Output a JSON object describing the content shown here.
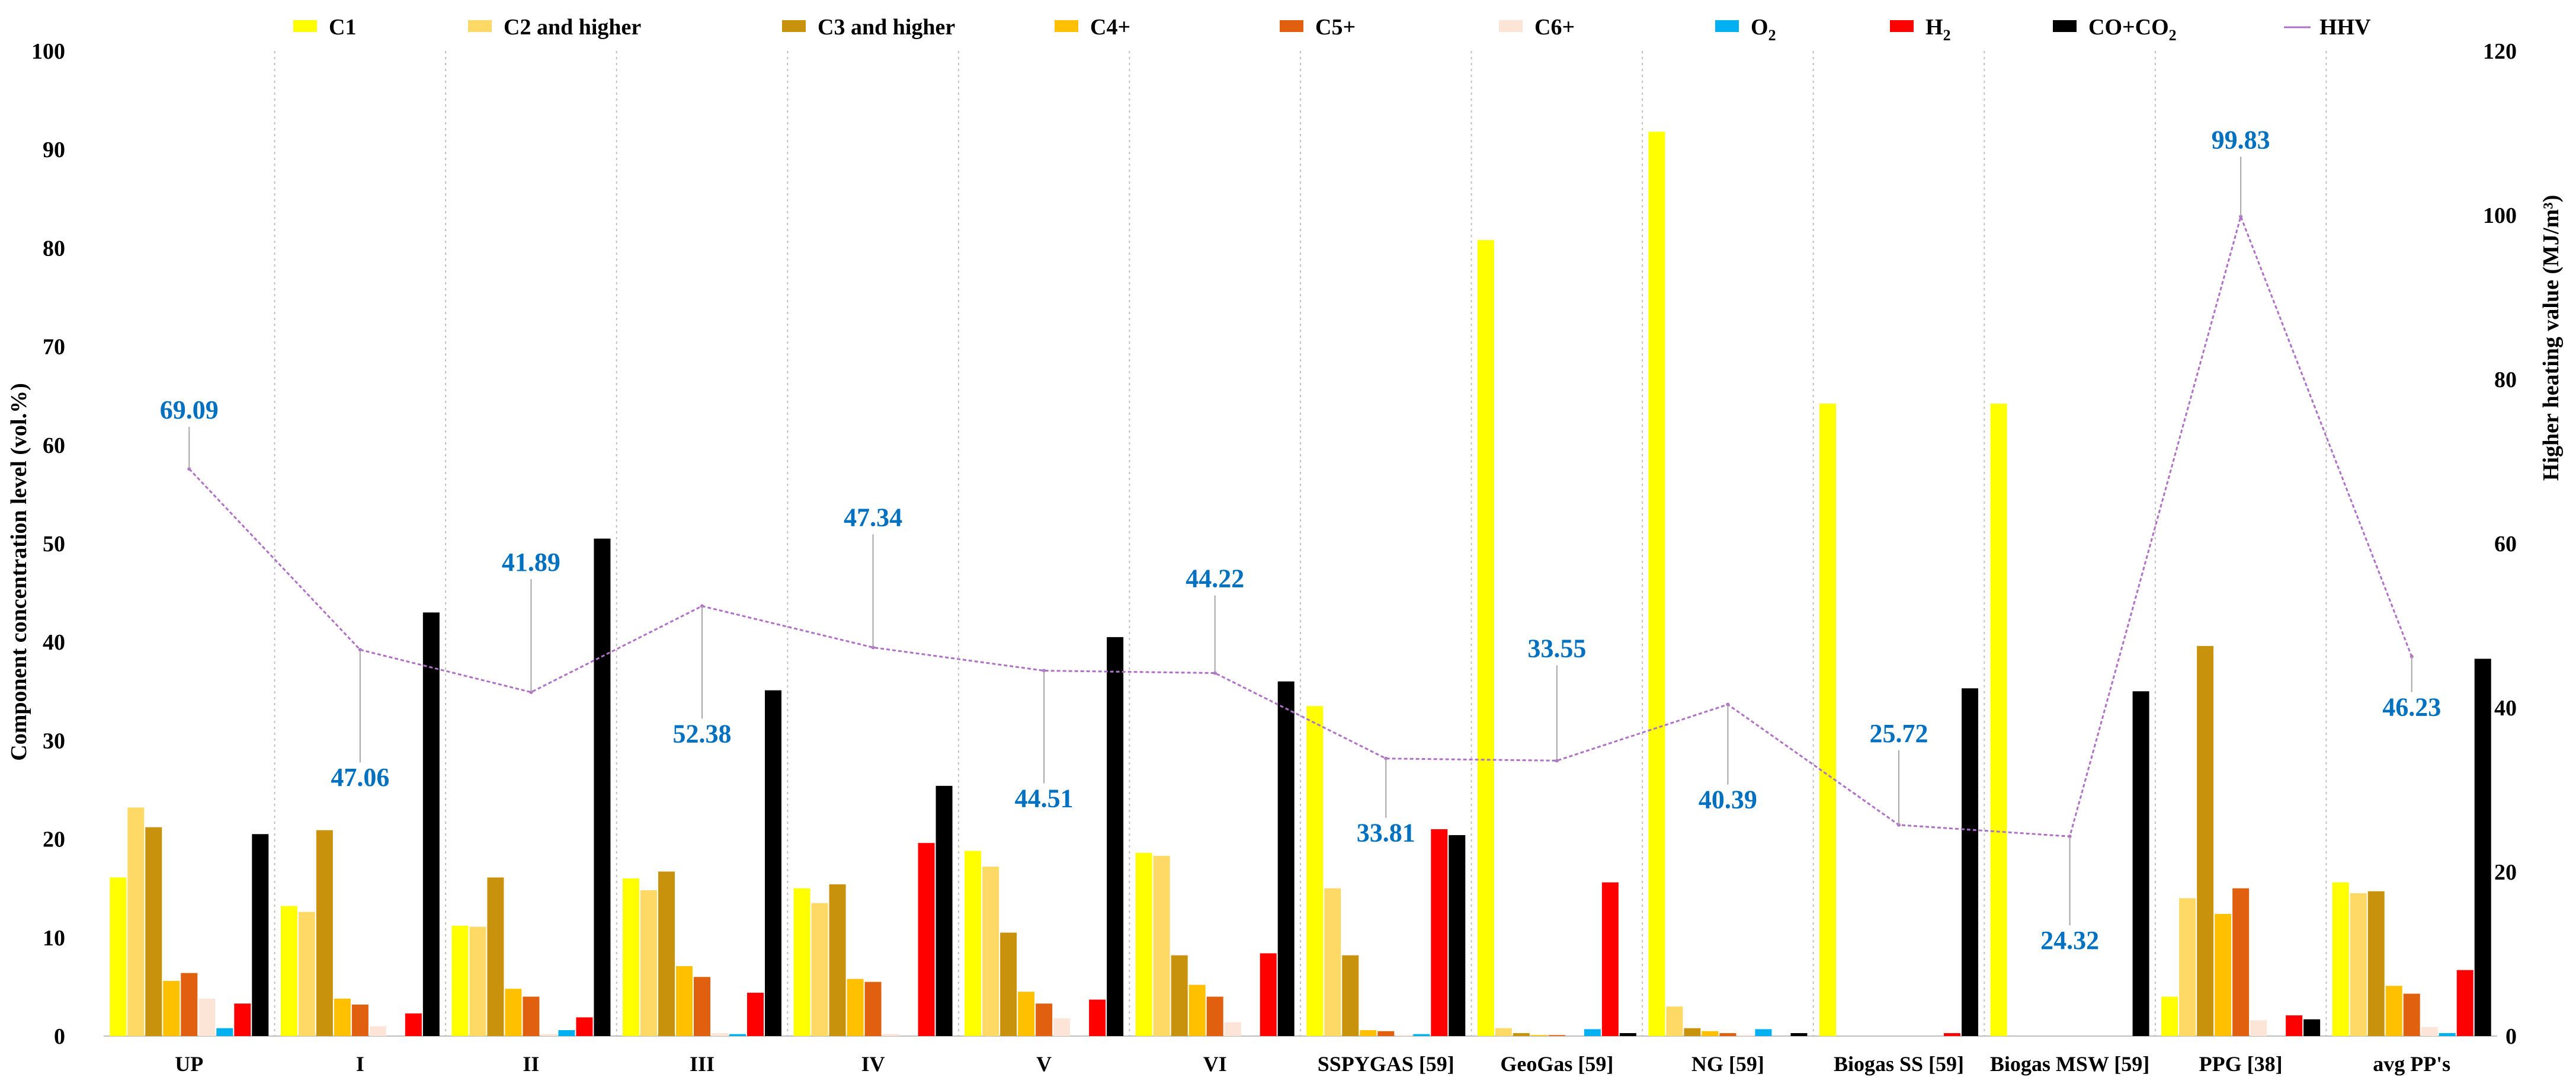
{
  "chart_data": {
    "type": "bar",
    "y_left_label": "Component concentration level (vol.%)",
    "y_right_label": "Higher heating value (MJ/m³)",
    "ylim_left": [
      0,
      100
    ],
    "ylim_right": [
      0,
      120
    ],
    "yticks_left": [
      "0",
      "10",
      "20",
      "30",
      "40",
      "50",
      "60",
      "70",
      "80",
      "90",
      "100"
    ],
    "yticks_right": [
      "0",
      "20",
      "40",
      "60",
      "80",
      "100",
      "120"
    ],
    "legend_position": "top",
    "gridlines": "vertical dotted separators between categories",
    "categories": [
      "UP",
      "I",
      "II",
      "III",
      "IV",
      "V",
      "VI",
      "SSPYGAS [59]",
      "GeoGas [59]",
      "NG [59]",
      "Biogas SS [59]",
      "Biogas MSW [59]",
      "PPG [38]",
      "avg PP's"
    ],
    "series": [
      {
        "name": "C1",
        "color": "#ffff00",
        "values": [
          16.1,
          13.2,
          11.2,
          16.0,
          15.0,
          18.8,
          18.6,
          33.5,
          80.8,
          91.8,
          64.2,
          64.2,
          4.0,
          15.6
        ]
      },
      {
        "name": "C2 and higher",
        "color": "#ffd966",
        "values": [
          23.2,
          12.6,
          11.1,
          14.8,
          13.5,
          17.2,
          18.3,
          15.0,
          0.8,
          3.0,
          0,
          0,
          14.0,
          14.5
        ]
      },
      {
        "name": "C3 and higher",
        "color": "#c9920c",
        "values": [
          21.2,
          20.9,
          16.1,
          16.7,
          15.4,
          10.5,
          8.2,
          8.2,
          0.3,
          0.8,
          0,
          0,
          39.6,
          14.7
        ]
      },
      {
        "name": "C4+",
        "color": "#ffc000",
        "values": [
          5.6,
          3.8,
          4.8,
          7.1,
          5.8,
          4.5,
          5.2,
          0.6,
          0.1,
          0.5,
          0,
          0,
          12.4,
          5.1
        ]
      },
      {
        "name": "C5+",
        "color": "#e06010",
        "values": [
          6.4,
          3.2,
          4.0,
          6.0,
          5.5,
          3.3,
          4.0,
          0.5,
          0.1,
          0.3,
          0,
          0,
          15.0,
          4.3
        ]
      },
      {
        "name": "C6+",
        "color": "#fce4d6",
        "values": [
          3.8,
          1.0,
          0.2,
          0.3,
          0.2,
          1.8,
          1.4,
          0.1,
          0,
          0.1,
          0,
          0,
          1.6,
          0.9
        ]
      },
      {
        "name": "O2",
        "color": "#00b0f0",
        "values": [
          0.8,
          0,
          0.6,
          0.2,
          0,
          0,
          0,
          0.2,
          0.7,
          0.7,
          0,
          0,
          0,
          0.3
        ]
      },
      {
        "name": "H2",
        "color": "#ff0000",
        "values": [
          3.3,
          2.3,
          1.9,
          4.4,
          19.6,
          3.7,
          8.4,
          21.0,
          15.6,
          0,
          0.3,
          0,
          2.1,
          6.7
        ]
      },
      {
        "name": "CO+CO2",
        "color": "#000000",
        "values": [
          20.5,
          43.0,
          50.5,
          35.1,
          25.4,
          40.5,
          36.0,
          20.4,
          0.3,
          0.3,
          35.3,
          35.0,
          1.7,
          38.3
        ]
      }
    ],
    "line_series": {
      "name": "HHV",
      "color": "#b070c8",
      "axis": "right",
      "values": [
        69.09,
        47.06,
        41.89,
        52.38,
        47.34,
        44.51,
        44.22,
        33.81,
        33.55,
        40.39,
        25.72,
        24.32,
        99.83,
        46.23
      ],
      "data_labels": [
        "69.09",
        "47.06",
        "41.89",
        "52.38",
        "47.34",
        "44.51",
        "44.22",
        "33.81",
        "33.55",
        "40.39",
        "25.72",
        "24.32",
        "99.83",
        "46.23"
      ]
    },
    "legend_entries": [
      {
        "label": "C1",
        "sub": "",
        "color": "#ffff00",
        "kind": "box"
      },
      {
        "label": "C2 and higher",
        "sub": "",
        "color": "#ffd966",
        "kind": "box"
      },
      {
        "label": "C3 and higher",
        "sub": "",
        "color": "#c9920c",
        "kind": "box"
      },
      {
        "label": "C4+",
        "sub": "",
        "color": "#ffc000",
        "kind": "box"
      },
      {
        "label": "C5+",
        "sub": "",
        "color": "#e06010",
        "kind": "box"
      },
      {
        "label": "C6+",
        "sub": "",
        "color": "#fce4d6",
        "kind": "box"
      },
      {
        "label": "O",
        "sub": "2",
        "color": "#00b0f0",
        "kind": "box"
      },
      {
        "label": "H",
        "sub": "2",
        "color": "#ff0000",
        "kind": "box"
      },
      {
        "label": "CO+CO",
        "sub": "2",
        "color": "#000000",
        "kind": "box"
      },
      {
        "label": "HHV",
        "sub": "",
        "color": "#b070c8",
        "kind": "line"
      }
    ]
  }
}
